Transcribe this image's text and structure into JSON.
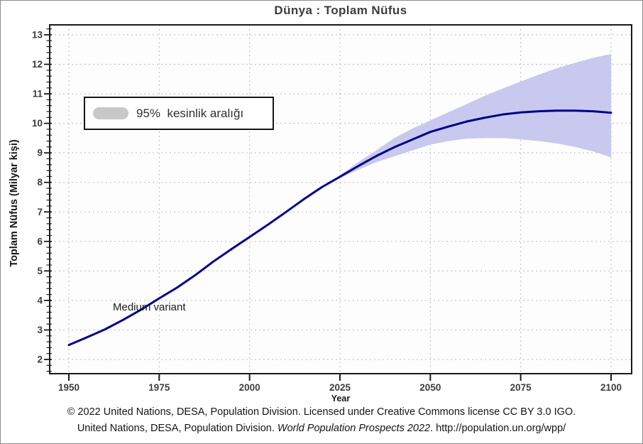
{
  "page": {
    "footer": {
      "line1": "© 2022 United Nations, DESA, Population Division. Licensed under Creative Commons license CC BY 3.0 IGO.",
      "line2_prefix": "United Nations, DESA, Population Division. ",
      "line2_italic": "World Population Prospects 2022",
      "line2_suffix": ". http://population.un.org/wpp/"
    }
  },
  "chart_data": {
    "type": "line",
    "title": "Dünya : Toplam Nüfus",
    "xlabel": "Year",
    "ylabel": "Toplam Nüfus (Milyar kişi)",
    "annotation": "Medium variant",
    "legend": {
      "label": "95%  kesinlik aralığı",
      "position": "upper-left",
      "swatch_color": "#c8c8c8"
    },
    "grid": "dotted",
    "xlim": [
      1944.5,
      2106
    ],
    "ylim": [
      1.5,
      13.4
    ],
    "x_ticks": [
      1950,
      1975,
      2000,
      2025,
      2050,
      2075,
      2100
    ],
    "y_ticks": [
      2,
      3,
      4,
      5,
      6,
      7,
      8,
      9,
      10,
      11,
      12,
      13
    ],
    "colors": {
      "line": "#00008b",
      "band": "#c9c9ef",
      "grid": "#bcbcbc",
      "axis": "#1a1a1a",
      "plot_bg": "#fdfdfd"
    },
    "series": [
      {
        "name": "Medium variant",
        "type": "line",
        "x": [
          1950,
          1955,
          1960,
          1965,
          1970,
          1975,
          1980,
          1985,
          1990,
          1995,
          2000,
          2005,
          2010,
          2015,
          2020,
          2025,
          2030,
          2035,
          2040,
          2045,
          2050,
          2055,
          2060,
          2065,
          2070,
          2075,
          2080,
          2085,
          2090,
          2095,
          2100
        ],
        "y": [
          2.49,
          2.75,
          3.02,
          3.34,
          3.69,
          4.07,
          4.44,
          4.86,
          5.32,
          5.74,
          6.15,
          6.56,
          6.99,
          7.43,
          7.84,
          8.19,
          8.55,
          8.89,
          9.19,
          9.45,
          9.71,
          9.89,
          10.06,
          10.19,
          10.3,
          10.37,
          10.41,
          10.43,
          10.43,
          10.41,
          10.36
        ]
      },
      {
        "name": "95% kesinlik aralığı",
        "type": "band",
        "x": [
          2025,
          2030,
          2035,
          2040,
          2045,
          2050,
          2055,
          2060,
          2065,
          2070,
          2075,
          2080,
          2085,
          2090,
          2095,
          2100
        ],
        "lower": [
          8.15,
          8.42,
          8.68,
          8.88,
          9.08,
          9.28,
          9.4,
          9.48,
          9.5,
          9.5,
          9.46,
          9.4,
          9.32,
          9.2,
          9.05,
          8.85
        ],
        "upper": [
          8.24,
          8.68,
          9.08,
          9.5,
          9.82,
          10.1,
          10.38,
          10.65,
          10.93,
          11.18,
          11.42,
          11.65,
          11.87,
          12.05,
          12.22,
          12.35
        ]
      }
    ]
  }
}
